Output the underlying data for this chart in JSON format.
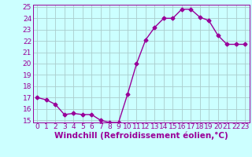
{
  "x": [
    0,
    1,
    2,
    3,
    4,
    5,
    6,
    7,
    8,
    9,
    10,
    11,
    12,
    13,
    14,
    15,
    16,
    17,
    18,
    19,
    20,
    21,
    22,
    23
  ],
  "y": [
    17.0,
    16.8,
    16.4,
    15.5,
    15.6,
    15.5,
    15.5,
    15.0,
    14.8,
    14.8,
    17.3,
    20.0,
    22.1,
    23.2,
    24.0,
    24.0,
    24.8,
    24.8,
    24.1,
    23.8,
    22.5,
    21.7,
    21.7,
    21.7
  ],
  "line_color": "#990099",
  "marker": "D",
  "marker_size": 2.5,
  "bg_color": "#ccffff",
  "grid_color": "#aacccc",
  "xlabel": "Windchill (Refroidissement éolien,°C)",
  "xlabel_color": "#990099",
  "ylim_min": 15,
  "ylim_max": 25,
  "xlim_min": -0.5,
  "xlim_max": 23.5,
  "yticks": [
    15,
    16,
    17,
    18,
    19,
    20,
    21,
    22,
    23,
    24,
    25
  ],
  "xticks": [
    0,
    1,
    2,
    3,
    4,
    5,
    6,
    7,
    8,
    9,
    10,
    11,
    12,
    13,
    14,
    15,
    16,
    17,
    18,
    19,
    20,
    21,
    22,
    23
  ],
  "tick_label_size": 6.5,
  "xlabel_size": 7.5,
  "linewidth": 1.0
}
